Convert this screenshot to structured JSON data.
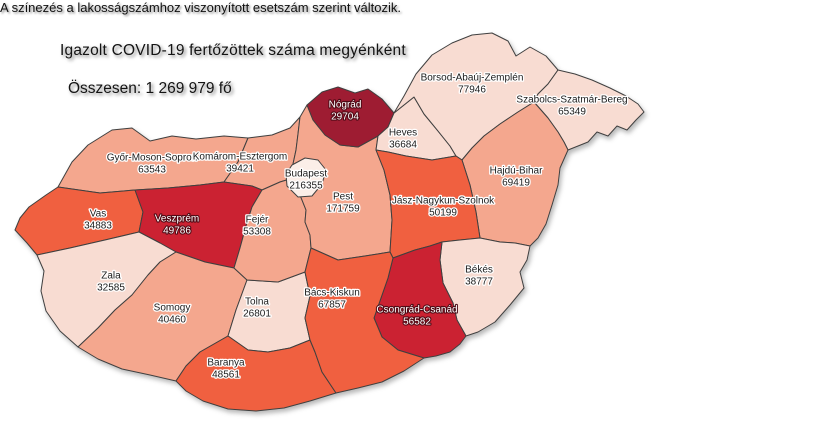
{
  "header": {
    "title": "Igazolt COVID-19 fertőzöttek száma megyénként",
    "subtitle": "Összesen: 1 269 979 fő"
  },
  "footnote": "A színezés a lakosságszámhoz viszonyított esetszám szerint változik.",
  "colors": {
    "background": "#ffffff",
    "border": "#3f3f3f",
    "scale": [
      "#fbeee8",
      "#f8dcd2",
      "#f4a78e",
      "#f0603f",
      "#cb2433",
      "#9e1b30"
    ],
    "label_light_text": "#1b1b1b",
    "label_dark_text": "#ffffff"
  },
  "chart_data": {
    "type": "choropleth",
    "region": "Hungary (megyék)",
    "metric": "Igazolt COVID-19 fertőzöttek száma megyénként",
    "total_label": "Összesen",
    "total": 1269979,
    "total_display": "1 269 979",
    "unit": "fő",
    "color_note": "A színezés a lakosságszámhoz viszonyított esetszám szerint változik.",
    "scale_note": "level 0 = lightest (fewest cases per population), level 5 = darkest",
    "counties": [
      {
        "id": "gyms",
        "name": "Győr-Moson-Sopron",
        "value": 63543,
        "level": 2
      },
      {
        "id": "ke",
        "name": "Komárom-Esztergom",
        "value": 39421,
        "level": 2
      },
      {
        "id": "vas",
        "name": "Vas",
        "value": 34883,
        "level": 3
      },
      {
        "id": "veszprem",
        "name": "Veszprém",
        "value": 49786,
        "level": 4
      },
      {
        "id": "zala",
        "name": "Zala",
        "value": 32585,
        "level": 1
      },
      {
        "id": "somogy",
        "name": "Somogy",
        "value": 40460,
        "level": 2
      },
      {
        "id": "tolna",
        "name": "Tolna",
        "value": 26801,
        "level": 1
      },
      {
        "id": "baranya",
        "name": "Baranya",
        "value": 48561,
        "level": 3
      },
      {
        "id": "fejer",
        "name": "Fejér",
        "value": 53308,
        "level": 2
      },
      {
        "id": "pest",
        "name": "Pest",
        "value": 171759,
        "level": 2
      },
      {
        "id": "budapest",
        "name": "Budapest",
        "value": 216355,
        "level": 0
      },
      {
        "id": "nograd",
        "name": "Nógrád",
        "value": 29704,
        "level": 5
      },
      {
        "id": "heves",
        "name": "Heves",
        "value": 36684,
        "level": 1
      },
      {
        "id": "borsod",
        "name": "Borsod-Abaúj-Zemplén",
        "value": 77946,
        "level": 1
      },
      {
        "id": "szabolcs",
        "name": "Szabolcs-Szatmár-Bereg",
        "value": 65349,
        "level": 1
      },
      {
        "id": "hajdu",
        "name": "Hajdú-Bihar",
        "value": 69419,
        "level": 2
      },
      {
        "id": "jnsz",
        "name": "Jász-Nagykun-Szolnok",
        "value": 50199,
        "level": 3
      },
      {
        "id": "bekes",
        "name": "Békés",
        "value": 38777,
        "level": 1
      },
      {
        "id": "csongrad",
        "name": "Csongrád-Csanád",
        "value": 56582,
        "level": 4
      },
      {
        "id": "bacs",
        "name": "Bács-Kiskun",
        "value": 67857,
        "level": 3
      }
    ]
  }
}
